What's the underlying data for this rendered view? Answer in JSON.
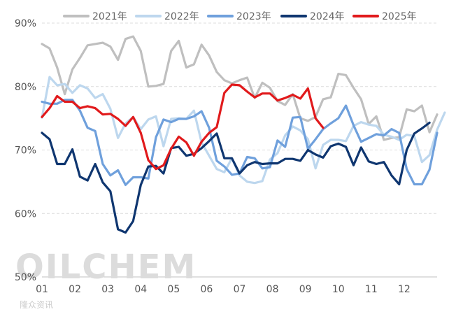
{
  "watermark": {
    "logo": "OILCHEM",
    "sub": "隆众资讯"
  },
  "chart_data": {
    "type": "line",
    "title": "",
    "xlabel": "",
    "ylabel": "",
    "x_ticks": [
      "01",
      "02",
      "03",
      "04",
      "05",
      "06",
      "07",
      "08",
      "09",
      "10",
      "11",
      "12"
    ],
    "y_ticks": [
      "50%",
      "60%",
      "70%",
      "80%",
      "90%"
    ],
    "ylim": [
      50,
      90
    ],
    "xlim": [
      1,
      13
    ],
    "grid": true,
    "legend_position": "top",
    "series": [
      {
        "name": "2021年",
        "color": "#bfbfbf",
        "values": [
          86.7,
          86.0,
          83.0,
          78.8,
          82.7,
          84.5,
          86.5,
          86.7,
          86.9,
          86.3,
          84.2,
          87.5,
          87.9,
          85.6,
          80.0,
          80.1,
          80.4,
          85.6,
          87.2,
          83.0,
          83.5,
          86.6,
          84.9,
          82.3,
          81.0,
          80.5,
          81.0,
          81.4,
          78.2,
          80.6,
          79.8,
          77.7,
          77.1,
          78.8,
          75.0,
          74.6,
          75.2,
          78.0,
          78.3,
          82.0,
          81.8,
          79.8,
          78.0,
          74.1,
          75.3,
          71.6,
          71.9,
          72.0,
          76.4,
          76.1,
          77.0,
          72.8,
          75.6
        ]
      },
      {
        "name": "2022年",
        "color": "#bdd7ee",
        "values": [
          75.1,
          81.5,
          80.2,
          80.4,
          79.0,
          80.2,
          79.7,
          78.2,
          78.8,
          76.5,
          71.9,
          74.2,
          75.2,
          73.3,
          74.8,
          75.3,
          70.6,
          74.9,
          75.0,
          74.9,
          76.2,
          71.2,
          69.1,
          67.0,
          66.5,
          68.7,
          66.0,
          65.0,
          64.8,
          65.1,
          68.5,
          69.5,
          72.3,
          73.7,
          73.1,
          71.7,
          67.1,
          70.8,
          71.6,
          71.6,
          71.4,
          73.8,
          74.4,
          74.0,
          73.8,
          72.4,
          72.1,
          71.6,
          72.4,
          72.2,
          68.1,
          69.2,
          73.2,
          75.9
        ]
      },
      {
        "name": "2023年",
        "color": "#6fa0dc",
        "values": [
          77.6,
          77.3,
          77.3,
          77.9,
          77.9,
          76.2,
          73.5,
          73.0,
          67.8,
          66.0,
          66.8,
          64.5,
          65.7,
          65.7,
          65.5,
          72.0,
          74.8,
          74.4,
          74.9,
          74.9,
          75.3,
          76.1,
          73.5,
          68.3,
          67.4,
          66.1,
          66.3,
          68.9,
          68.7,
          67.1,
          67.3,
          71.5,
          70.5,
          75.1,
          75.2,
          70.2,
          71.7,
          73.3,
          74.2,
          75.0,
          77.0,
          73.9,
          71.3,
          71.9,
          72.5,
          72.3,
          73.3,
          72.7,
          67.0,
          64.6,
          64.6,
          66.9,
          72.7
        ]
      },
      {
        "name": "2024年",
        "color": "#0f3670",
        "values": [
          72.7,
          71.7,
          67.8,
          67.8,
          70.1,
          65.8,
          65.2,
          67.8,
          64.9,
          63.5,
          57.5,
          57.0,
          58.8,
          64.5,
          67.4,
          67.5,
          66.3,
          70.3,
          70.5,
          69.1,
          69.4,
          70.3,
          71.4,
          72.6,
          68.7,
          68.7,
          66.3,
          67.6,
          68.1,
          67.8,
          67.9,
          67.9,
          68.6,
          68.6,
          68.3,
          70.0,
          69.3,
          68.8,
          70.6,
          71.0,
          70.5,
          67.6,
          70.4,
          68.2,
          67.8,
          68.1,
          66.0,
          64.6,
          70.0,
          72.6,
          73.4,
          74.3
        ]
      },
      {
        "name": "2025年",
        "color": "#e11a1c",
        "values": [
          75.2,
          76.6,
          78.5,
          77.6,
          77.6,
          76.6,
          76.9,
          76.6,
          75.6,
          75.7,
          74.9,
          73.8,
          75.2,
          72.7,
          68.4,
          67.0,
          67.6,
          70.2,
          72.1,
          71.2,
          69.1,
          71.3,
          72.7,
          73.6,
          79.0,
          80.3,
          80.2,
          79.2,
          78.3,
          78.9,
          78.9,
          77.8,
          78.2,
          78.7,
          78.1,
          79.7,
          75.0,
          73.5
        ]
      }
    ]
  }
}
